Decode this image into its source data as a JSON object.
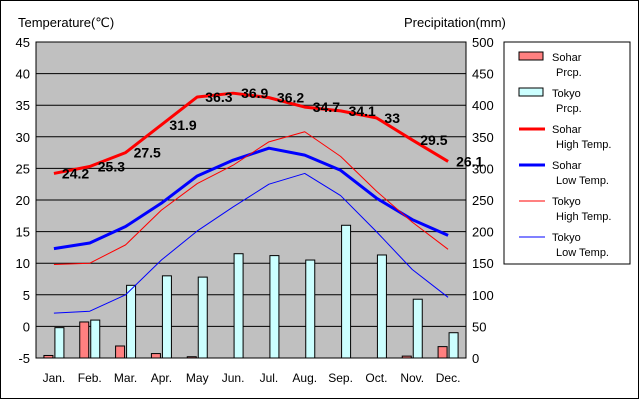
{
  "chart_data": {
    "type": "bar+line",
    "y_left_title": "Temperature(℃)",
    "y_right_title": "Precipitation(mm)",
    "ylim_left": [
      -5,
      45
    ],
    "ylim_right": [
      0,
      500
    ],
    "left_ticks": [
      45,
      40,
      35,
      30,
      25,
      20,
      15,
      10,
      5,
      0,
      -5
    ],
    "right_ticks": [
      500,
      450,
      400,
      350,
      300,
      250,
      200,
      150,
      100,
      50,
      0
    ],
    "categories": [
      "Jan.",
      "Feb.",
      "Mar.",
      "Apr.",
      "May",
      "Jun.",
      "Jul.",
      "Aug.",
      "Sep.",
      "Oct.",
      "Nov.",
      "Dec."
    ],
    "grid": true,
    "legend_position": "right",
    "bar_series": [
      {
        "name": "Sohar Prcp.",
        "label_lines": [
          "Sohar",
          "Prcp."
        ],
        "color": "#ff8080",
        "values": [
          4,
          57,
          19,
          7,
          2,
          0,
          0,
          0,
          0,
          0,
          3,
          18
        ]
      },
      {
        "name": "Tokyo Prcp.",
        "label_lines": [
          "Tokyo",
          "Prcp."
        ],
        "color": "#ccffff",
        "values": [
          48,
          60,
          115,
          130,
          128,
          165,
          162,
          155,
          210,
          163,
          93,
          40
        ]
      }
    ],
    "line_series": [
      {
        "name": "Sohar High Temp.",
        "label_lines": [
          "Sohar",
          "High Temp."
        ],
        "color": "#ff0000",
        "width": 3,
        "values": [
          24.2,
          25.3,
          27.5,
          31.9,
          36.3,
          36.9,
          36.2,
          34.7,
          34.1,
          33,
          29.5,
          26.1
        ]
      },
      {
        "name": "Sohar Low Temp.",
        "label_lines": [
          "Sohar",
          "Low Temp."
        ],
        "color": "#0000ff",
        "width": 3,
        "values": [
          12.3,
          13.2,
          15.8,
          19.5,
          23.8,
          26.3,
          28.2,
          27.1,
          24.7,
          20.3,
          16.9,
          14.4
        ]
      },
      {
        "name": "Tokyo High Temp.",
        "label_lines": [
          "Tokyo",
          "High Temp."
        ],
        "color": "#ff0000",
        "width": 1,
        "values": [
          9.8,
          10.0,
          12.9,
          18.4,
          22.6,
          25.5,
          29.2,
          30.8,
          26.9,
          21.4,
          16.5,
          12.2
        ]
      },
      {
        "name": "Tokyo Low Temp.",
        "label_lines": [
          "Tokyo",
          "Low Temp."
        ],
        "color": "#0000ff",
        "width": 1,
        "values": [
          2.1,
          2.4,
          5.0,
          10.5,
          15.1,
          18.9,
          22.5,
          24.2,
          20.7,
          15.0,
          9.0,
          4.6
        ]
      }
    ],
    "data_labels": {
      "series": "Sohar High Temp.",
      "values": [
        "24.2",
        "25.3",
        "27.5",
        "31.9",
        "36.3",
        "36.9",
        "36.2",
        "34.7",
        "34.1",
        "33",
        "29.5",
        "26.1"
      ]
    }
  }
}
